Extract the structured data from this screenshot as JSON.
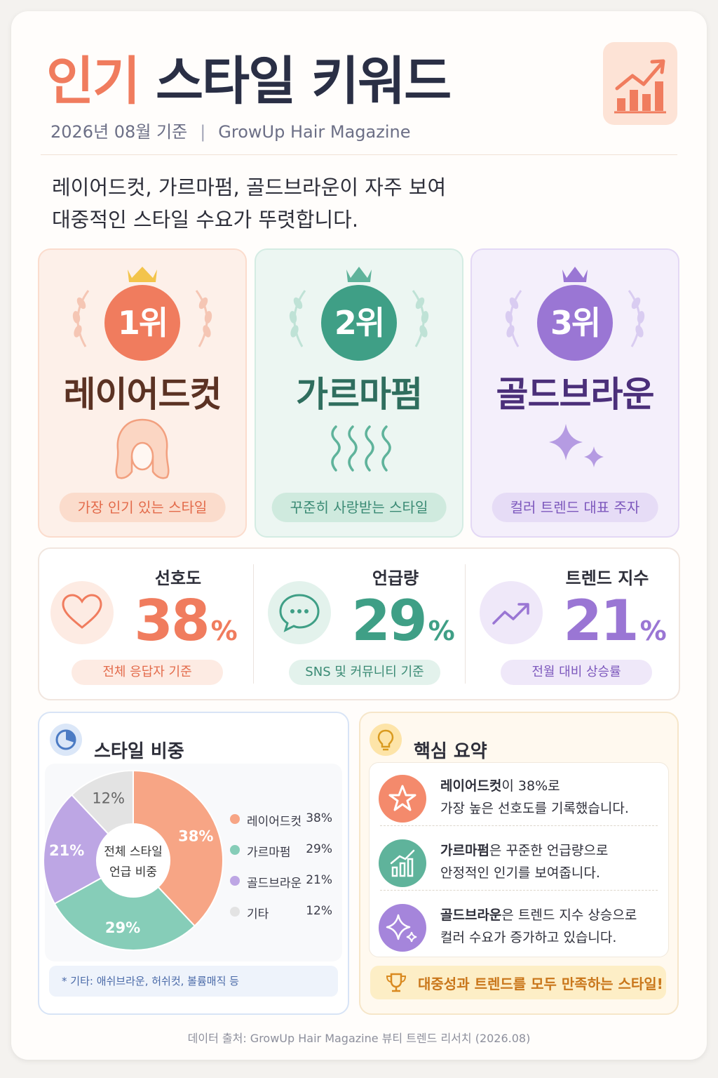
{
  "header": {
    "title_highlight": "인기",
    "title_rest": "스타일 키워드",
    "date": "2026년 08월 기준",
    "separator": "|",
    "publisher": "GrowUp Hair Magazine",
    "icon": "trend-chart-icon"
  },
  "intro": {
    "line1": "레이어드컷, 가르마펌, 골드브라운이 자주 보여",
    "line2": "대중적인 스타일 수요가 뚜렷합니다."
  },
  "ranking": [
    {
      "rank": "1위",
      "name": "레이어드컷",
      "caption": "가장 인기 있는 스타일",
      "icon": "hair-silhouette-icon",
      "color": "#f07c5e"
    },
    {
      "rank": "2위",
      "name": "가르마펌",
      "caption": "꾸준히 사랑받는 스타일",
      "icon": "wave-lines-icon",
      "color": "#3f9f86"
    },
    {
      "rank": "3위",
      "name": "골드브라운",
      "caption": "컬러 트렌드 대표 주자",
      "icon": "sparkle-icon",
      "color": "#9a76d4"
    }
  ],
  "metrics": [
    {
      "label": "선호도",
      "value": "38",
      "unit": "%",
      "caption": "전체 응답자 기준",
      "icon": "heart-icon",
      "color": "#f07c5e"
    },
    {
      "label": "언급량",
      "value": "29",
      "unit": "%",
      "caption": "SNS 및 커뮤니티 기준",
      "icon": "chat-bubble-icon",
      "color": "#3f9f86"
    },
    {
      "label": "트렌드 지수",
      "value": "21",
      "unit": "%",
      "caption": "전월 대비 상승률",
      "icon": "trend-up-icon",
      "color": "#9a76d4"
    }
  ],
  "share": {
    "title": "스타일 비중",
    "icon": "pie-chart-icon",
    "center_line1": "전체 스타일",
    "center_line2": "언급 비중",
    "note": "* 기타: 애쉬브라운, 허쉬컷, 볼륨매직 등"
  },
  "chart_data": {
    "type": "pie",
    "title": "스타일 비중",
    "categories": [
      "레이어드컷",
      "가르마펌",
      "골드브라운",
      "기타"
    ],
    "values": [
      38,
      29,
      21,
      12
    ],
    "unit": "%",
    "colors": [
      "#f7a585",
      "#86cdb8",
      "#bda6e4",
      "#e3e3e3"
    ],
    "labels": [
      "38%",
      "29%",
      "21%",
      "12%"
    ],
    "legend_position": "right"
  },
  "summary": {
    "title": "핵심 요약",
    "icon": "lightbulb-icon",
    "items": [
      {
        "bold": "레이어드컷",
        "rest1": "이 38%로",
        "line2": "가장 높은 선호도를 기록했습니다.",
        "icon": "star-icon",
        "color": "#f07c5e"
      },
      {
        "bold": "가르마펌",
        "rest1": "은 꾸준한 언급량으로",
        "line2": "안정적인 인기를 보여줍니다.",
        "icon": "bar-growth-icon",
        "color": "#3f9f86"
      },
      {
        "bold": "골드브라운",
        "rest1": "은 트렌드 지수 상승으로",
        "line2": "컬러 수요가 증가하고 있습니다.",
        "icon": "sparkle-icon",
        "color": "#9a76d4"
      }
    ],
    "banner": "대중성과 트렌드를 모두 만족하는 스타일!",
    "banner_icon": "trophy-icon"
  },
  "footer": "데이터 출처: GrowUp Hair Magazine 뷰티 트렌드 리서치 (2026.08)"
}
